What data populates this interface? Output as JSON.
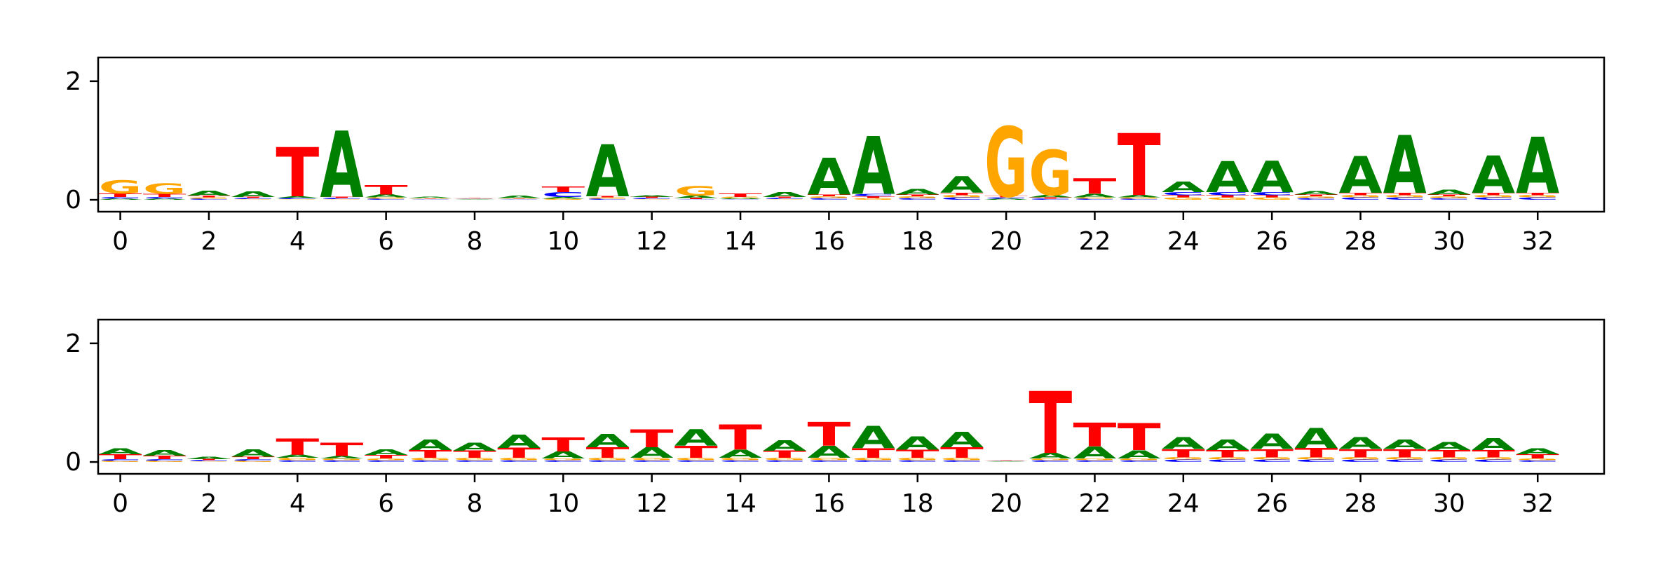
{
  "chart_data": [
    {
      "type": "sequence-logo",
      "title": "",
      "xlabel": "",
      "ylabel": "",
      "xlim": [
        -0.5,
        33.5
      ],
      "ylim": [
        -0.2,
        2.4
      ],
      "xticks": [
        0,
        2,
        4,
        6,
        8,
        10,
        12,
        14,
        16,
        18,
        20,
        22,
        24,
        26,
        28,
        30,
        32
      ],
      "yticks": [
        0,
        2
      ],
      "alphabet": [
        "A",
        "C",
        "G",
        "T"
      ],
      "colors": {
        "A": "#008000",
        "C": "#0000ff",
        "G": "#ffa500",
        "T": "#ff0000"
      },
      "positions": [
        {
          "x": 0,
          "heights": {
            "A": 0.02,
            "C": 0.03,
            "G": 0.22,
            "T": 0.06
          }
        },
        {
          "x": 1,
          "heights": {
            "A": 0.02,
            "C": 0.03,
            "G": 0.18,
            "T": 0.05
          }
        },
        {
          "x": 2,
          "heights": {
            "A": 0.08,
            "C": 0.02,
            "G": 0.02,
            "T": 0.03
          }
        },
        {
          "x": 3,
          "heights": {
            "A": 0.09,
            "C": 0.02,
            "G": 0.01,
            "T": 0.02
          }
        },
        {
          "x": 4,
          "heights": {
            "A": 0.03,
            "C": 0.02,
            "G": 0.01,
            "T": 0.83
          }
        },
        {
          "x": 5,
          "heights": {
            "A": 1.12,
            "C": 0.02,
            "G": 0.01,
            "T": 0.02
          }
        },
        {
          "x": 6,
          "heights": {
            "A": 0.05,
            "C": 0.02,
            "G": 0.02,
            "T": 0.16
          }
        },
        {
          "x": 7,
          "heights": {
            "A": 0.02,
            "C": 0.01,
            "G": 0.01,
            "T": 0.01
          }
        },
        {
          "x": 8,
          "heights": {
            "A": 0.01,
            "C": 0.01,
            "G": 0.01,
            "T": 0.01
          }
        },
        {
          "x": 9,
          "heights": {
            "A": 0.04,
            "C": 0.01,
            "G": 0.01,
            "T": 0.01
          }
        },
        {
          "x": 10,
          "heights": {
            "A": 0.03,
            "C": 0.08,
            "G": 0.02,
            "T": 0.09
          }
        },
        {
          "x": 11,
          "heights": {
            "A": 0.88,
            "C": 0.02,
            "G": 0.02,
            "T": 0.02
          }
        },
        {
          "x": 12,
          "heights": {
            "A": 0.03,
            "C": 0.02,
            "G": 0.01,
            "T": 0.02
          }
        },
        {
          "x": 13,
          "heights": {
            "A": 0.04,
            "C": 0.01,
            "G": 0.16,
            "T": 0.02
          }
        },
        {
          "x": 14,
          "heights": {
            "A": 0.02,
            "C": 0.01,
            "G": 0.02,
            "T": 0.06
          }
        },
        {
          "x": 15,
          "heights": {
            "A": 0.08,
            "C": 0.02,
            "G": 0.01,
            "T": 0.02
          }
        },
        {
          "x": 16,
          "heights": {
            "A": 0.62,
            "C": 0.03,
            "G": 0.03,
            "T": 0.03
          }
        },
        {
          "x": 17,
          "heights": {
            "A": 0.98,
            "C": 0.04,
            "G": 0.03,
            "T": 0.03
          }
        },
        {
          "x": 18,
          "heights": {
            "A": 0.09,
            "C": 0.03,
            "G": 0.03,
            "T": 0.03
          }
        },
        {
          "x": 19,
          "heights": {
            "A": 0.28,
            "C": 0.04,
            "G": 0.04,
            "T": 0.04
          }
        },
        {
          "x": 20,
          "heights": {
            "A": 0.02,
            "C": 0.02,
            "G": 1.18,
            "T": 0.02
          }
        },
        {
          "x": 21,
          "heights": {
            "A": 0.04,
            "C": 0.02,
            "G": 0.76,
            "T": 0.02
          }
        },
        {
          "x": 22,
          "heights": {
            "A": 0.06,
            "C": 0.02,
            "G": 0.02,
            "T": 0.26
          }
        },
        {
          "x": 23,
          "heights": {
            "A": 0.04,
            "C": 0.02,
            "G": 0.02,
            "T": 1.05
          }
        },
        {
          "x": 24,
          "heights": {
            "A": 0.18,
            "C": 0.05,
            "G": 0.04,
            "T": 0.04
          }
        },
        {
          "x": 25,
          "heights": {
            "A": 0.52,
            "C": 0.05,
            "G": 0.04,
            "T": 0.04
          }
        },
        {
          "x": 26,
          "heights": {
            "A": 0.53,
            "C": 0.05,
            "G": 0.04,
            "T": 0.04
          }
        },
        {
          "x": 27,
          "heights": {
            "A": 0.06,
            "C": 0.03,
            "G": 0.03,
            "T": 0.03
          }
        },
        {
          "x": 28,
          "heights": {
            "A": 0.62,
            "C": 0.04,
            "G": 0.04,
            "T": 0.04
          }
        },
        {
          "x": 29,
          "heights": {
            "A": 0.98,
            "C": 0.04,
            "G": 0.04,
            "T": 0.04
          }
        },
        {
          "x": 30,
          "heights": {
            "A": 0.08,
            "C": 0.03,
            "G": 0.03,
            "T": 0.03
          }
        },
        {
          "x": 31,
          "heights": {
            "A": 0.63,
            "C": 0.04,
            "G": 0.04,
            "T": 0.04
          }
        },
        {
          "x": 32,
          "heights": {
            "A": 0.95,
            "C": 0.04,
            "G": 0.04,
            "T": 0.04
          }
        }
      ]
    },
    {
      "type": "sequence-logo",
      "title": "",
      "xlabel": "",
      "ylabel": "",
      "xlim": [
        -0.5,
        33.5
      ],
      "ylim": [
        -0.2,
        2.4
      ],
      "xticks": [
        0,
        2,
        4,
        6,
        8,
        10,
        12,
        14,
        16,
        18,
        20,
        22,
        24,
        26,
        28,
        30,
        32
      ],
      "yticks": [
        0,
        2
      ],
      "alphabet": [
        "A",
        "C",
        "G",
        "T"
      ],
      "colors": {
        "A": "#008000",
        "C": "#0000ff",
        "G": "#ffa500",
        "T": "#ff0000"
      },
      "positions": [
        {
          "x": 0,
          "heights": {
            "A": 0.1,
            "C": 0.03,
            "G": 0.02,
            "T": 0.08
          }
        },
        {
          "x": 1,
          "heights": {
            "A": 0.09,
            "C": 0.03,
            "G": 0.02,
            "T": 0.06
          }
        },
        {
          "x": 2,
          "heights": {
            "A": 0.04,
            "C": 0.02,
            "G": 0.01,
            "T": 0.02
          }
        },
        {
          "x": 3,
          "heights": {
            "A": 0.12,
            "C": 0.03,
            "G": 0.02,
            "T": 0.04
          }
        },
        {
          "x": 4,
          "heights": {
            "A": 0.05,
            "C": 0.03,
            "G": 0.04,
            "T": 0.28
          }
        },
        {
          "x": 5,
          "heights": {
            "A": 0.04,
            "C": 0.03,
            "G": 0.03,
            "T": 0.22
          }
        },
        {
          "x": 6,
          "heights": {
            "A": 0.09,
            "C": 0.03,
            "G": 0.03,
            "T": 0.06
          }
        },
        {
          "x": 7,
          "heights": {
            "A": 0.18,
            "C": 0.03,
            "G": 0.04,
            "T": 0.13
          }
        },
        {
          "x": 8,
          "heights": {
            "A": 0.14,
            "C": 0.03,
            "G": 0.04,
            "T": 0.12
          }
        },
        {
          "x": 9,
          "heights": {
            "A": 0.22,
            "C": 0.03,
            "G": 0.04,
            "T": 0.17
          }
        },
        {
          "x": 10,
          "heights": {
            "A": 0.12,
            "C": 0.03,
            "G": 0.03,
            "T": 0.24
          }
        },
        {
          "x": 11,
          "heights": {
            "A": 0.22,
            "C": 0.03,
            "G": 0.04,
            "T": 0.18
          }
        },
        {
          "x": 12,
          "heights": {
            "A": 0.18,
            "C": 0.03,
            "G": 0.04,
            "T": 0.3
          }
        },
        {
          "x": 13,
          "heights": {
            "A": 0.28,
            "C": 0.03,
            "G": 0.04,
            "T": 0.2
          }
        },
        {
          "x": 14,
          "heights": {
            "A": 0.14,
            "C": 0.03,
            "G": 0.04,
            "T": 0.42
          }
        },
        {
          "x": 15,
          "heights": {
            "A": 0.18,
            "C": 0.03,
            "G": 0.04,
            "T": 0.12
          }
        },
        {
          "x": 16,
          "heights": {
            "A": 0.2,
            "C": 0.03,
            "G": 0.04,
            "T": 0.4
          }
        },
        {
          "x": 17,
          "heights": {
            "A": 0.38,
            "C": 0.03,
            "G": 0.04,
            "T": 0.16
          }
        },
        {
          "x": 18,
          "heights": {
            "A": 0.22,
            "C": 0.03,
            "G": 0.04,
            "T": 0.14
          }
        },
        {
          "x": 19,
          "heights": {
            "A": 0.26,
            "C": 0.03,
            "G": 0.04,
            "T": 0.18
          }
        },
        {
          "x": 20,
          "heights": {
            "A": 0.01,
            "C": 0.01,
            "G": 0.01,
            "T": 0.01
          }
        },
        {
          "x": 21,
          "heights": {
            "A": 0.09,
            "C": 0.03,
            "G": 0.03,
            "T": 1.05
          }
        },
        {
          "x": 22,
          "heights": {
            "A": 0.2,
            "C": 0.03,
            "G": 0.03,
            "T": 0.4
          }
        },
        {
          "x": 23,
          "heights": {
            "A": 0.14,
            "C": 0.03,
            "G": 0.03,
            "T": 0.45
          }
        },
        {
          "x": 24,
          "heights": {
            "A": 0.2,
            "C": 0.04,
            "G": 0.04,
            "T": 0.14
          }
        },
        {
          "x": 25,
          "heights": {
            "A": 0.18,
            "C": 0.04,
            "G": 0.04,
            "T": 0.12
          }
        },
        {
          "x": 26,
          "heights": {
            "A": 0.26,
            "C": 0.04,
            "G": 0.04,
            "T": 0.14
          }
        },
        {
          "x": 27,
          "heights": {
            "A": 0.34,
            "C": 0.04,
            "G": 0.04,
            "T": 0.16
          }
        },
        {
          "x": 28,
          "heights": {
            "A": 0.2,
            "C": 0.04,
            "G": 0.04,
            "T": 0.14
          }
        },
        {
          "x": 29,
          "heights": {
            "A": 0.16,
            "C": 0.04,
            "G": 0.04,
            "T": 0.14
          }
        },
        {
          "x": 30,
          "heights": {
            "A": 0.14,
            "C": 0.04,
            "G": 0.04,
            "T": 0.12
          }
        },
        {
          "x": 31,
          "heights": {
            "A": 0.2,
            "C": 0.04,
            "G": 0.04,
            "T": 0.12
          }
        },
        {
          "x": 32,
          "heights": {
            "A": 0.1,
            "C": 0.03,
            "G": 0.03,
            "T": 0.07
          }
        }
      ]
    }
  ]
}
